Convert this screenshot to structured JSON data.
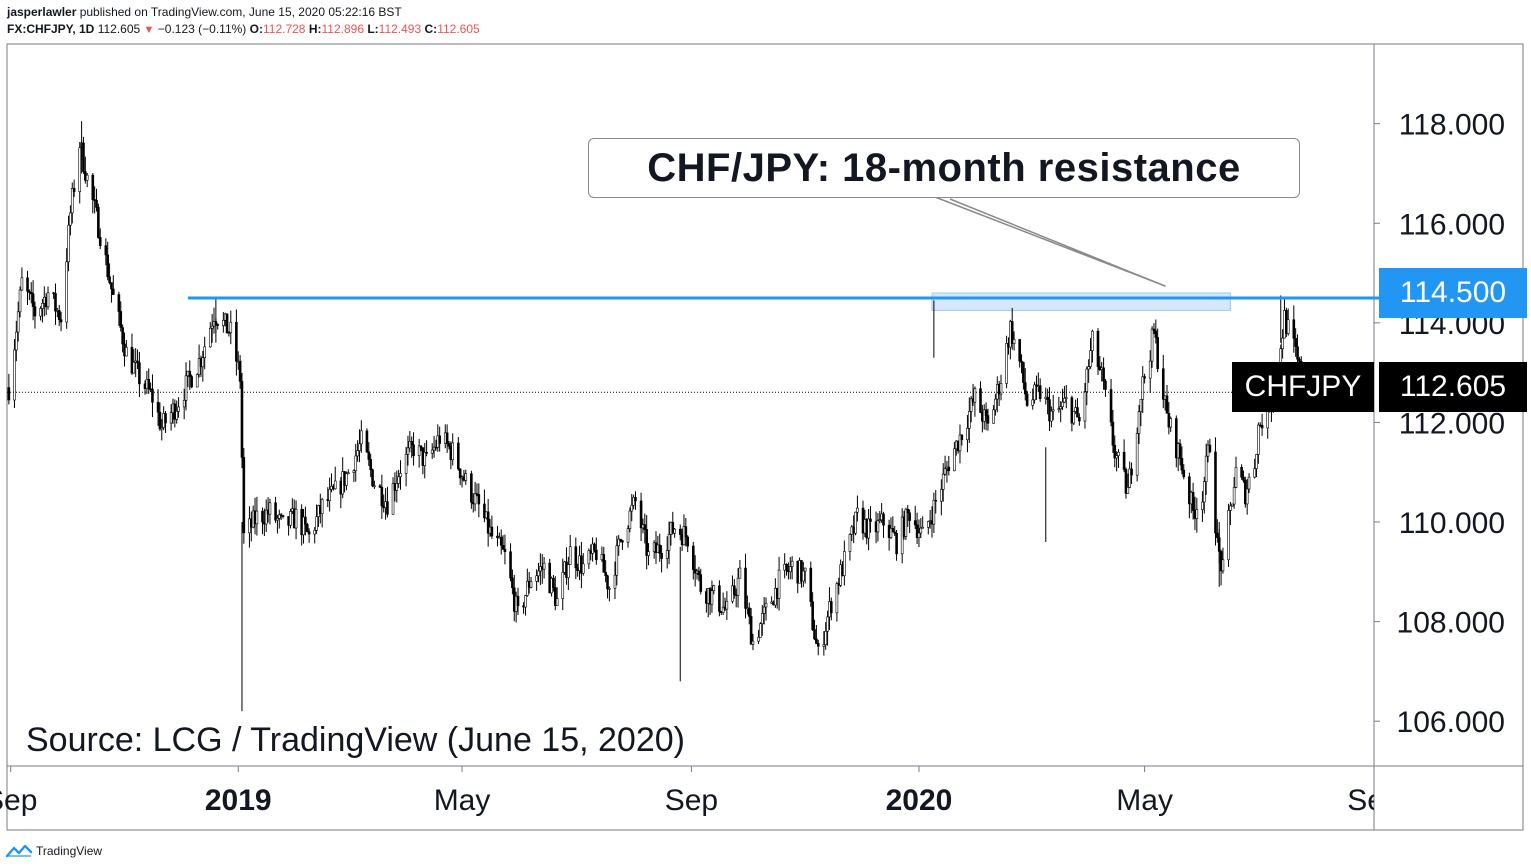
{
  "header": {
    "author": "jasperlawler",
    "published_text": " published on TradingView.com, June 15, 2020 05:22:16 BST"
  },
  "ohlc": {
    "symbol": "FX:CHFJPY, 1D",
    "last": "112.605",
    "change": "−0.123 (−0.11%)",
    "open_label": "O:",
    "open": "112.728",
    "high_label": "H:",
    "high": "112.896",
    "low_label": "L:",
    "low": "112.493",
    "close_label": "C:",
    "close": "112.605"
  },
  "annotation": {
    "callout": "CHF/JPY: 18-month resistance",
    "source": "Source: LCG / TradingView (June 15, 2020)"
  },
  "price_tags": {
    "resistance": "114.500",
    "symbol": "CHFJPY",
    "current": "112.605"
  },
  "footer": {
    "brand": "TradingView"
  },
  "colors": {
    "resistance_line": "#2196f3",
    "zone_fill": "#cfe3f8",
    "candle": "#000000",
    "down_text": "#ef5350"
  },
  "chart_data": {
    "type": "candlestick",
    "title": "",
    "xlabel": "",
    "ylabel": "",
    "x_ticks": [
      {
        "label": "Sep",
        "date": "2018-09-01",
        "bold": false
      },
      {
        "label": "2019",
        "date": "2019-01-01",
        "bold": true
      },
      {
        "label": "May",
        "date": "2019-05-01",
        "bold": false
      },
      {
        "label": "Sep",
        "date": "2019-09-01",
        "bold": false
      },
      {
        "label": "2020",
        "date": "2020-01-01",
        "bold": true
      },
      {
        "label": "May",
        "date": "2020-05-01",
        "bold": false
      },
      {
        "label": "Sep",
        "date": "2020-09-01",
        "bold": false
      }
    ],
    "y_ticks": [
      "106.000",
      "108.000",
      "110.000",
      "112.000",
      "114.000",
      "116.000",
      "118.000"
    ],
    "ylim": [
      105.1,
      119.6
    ],
    "xlim": [
      "2018-08-30",
      "2020-09-01"
    ],
    "resistance_level": 114.5,
    "resistance_zone": {
      "from": "2020-01-08",
      "to": "2020-06-16",
      "low": 114.25,
      "high": 114.6
    },
    "current_price": 112.605,
    "series": [
      {
        "points": [
          {
            "date": "2018-08-31",
            "value": 112.7
          },
          {
            "date": "2018-09-07",
            "value": 114.8
          },
          {
            "date": "2018-09-14",
            "value": 114.2
          },
          {
            "date": "2018-09-21",
            "value": 114.6
          },
          {
            "date": "2018-09-28",
            "value": 114.1
          },
          {
            "date": "2018-10-03",
            "value": 116.2
          },
          {
            "date": "2018-10-08",
            "value": 117.6
          },
          {
            "date": "2018-10-12",
            "value": 116.9
          },
          {
            "date": "2018-10-19",
            "value": 115.8
          },
          {
            "date": "2018-10-26",
            "value": 114.5
          },
          {
            "date": "2018-11-02",
            "value": 113.4
          },
          {
            "date": "2018-11-09",
            "value": 112.9
          },
          {
            "date": "2018-11-16",
            "value": 112.5
          },
          {
            "date": "2018-11-21",
            "value": 111.9
          },
          {
            "date": "2018-11-28",
            "value": 112.3
          },
          {
            "date": "2018-12-05",
            "value": 112.8
          },
          {
            "date": "2018-12-12",
            "value": 113.3
          },
          {
            "date": "2018-12-19",
            "value": 114.2
          },
          {
            "date": "2018-12-28",
            "value": 113.8
          },
          {
            "date": "2019-01-02",
            "value": 112.9
          },
          {
            "date": "2019-01-04",
            "value": 109.7
          },
          {
            "date": "2019-01-11",
            "value": 110.1
          },
          {
            "date": "2019-01-18",
            "value": 110.2
          },
          {
            "date": "2019-01-25",
            "value": 109.9
          },
          {
            "date": "2019-02-01",
            "value": 110.1
          },
          {
            "date": "2019-02-08",
            "value": 109.7
          },
          {
            "date": "2019-02-15",
            "value": 110.3
          },
          {
            "date": "2019-02-22",
            "value": 110.6
          },
          {
            "date": "2019-03-01",
            "value": 111.0
          },
          {
            "date": "2019-03-08",
            "value": 111.6
          },
          {
            "date": "2019-03-15",
            "value": 110.8
          },
          {
            "date": "2019-03-22",
            "value": 110.4
          },
          {
            "date": "2019-03-29",
            "value": 111.1
          },
          {
            "date": "2019-04-05",
            "value": 111.5
          },
          {
            "date": "2019-04-12",
            "value": 111.2
          },
          {
            "date": "2019-04-19",
            "value": 111.7
          },
          {
            "date": "2019-04-26",
            "value": 111.4
          },
          {
            "date": "2019-05-03",
            "value": 110.8
          },
          {
            "date": "2019-05-10",
            "value": 110.3
          },
          {
            "date": "2019-05-17",
            "value": 109.7
          },
          {
            "date": "2019-05-24",
            "value": 109.3
          },
          {
            "date": "2019-05-31",
            "value": 108.1
          },
          {
            "date": "2019-06-07",
            "value": 108.9
          },
          {
            "date": "2019-06-14",
            "value": 109.1
          },
          {
            "date": "2019-06-21",
            "value": 108.4
          },
          {
            "date": "2019-06-28",
            "value": 109.4
          },
          {
            "date": "2019-07-05",
            "value": 109.1
          },
          {
            "date": "2019-07-12",
            "value": 109.4
          },
          {
            "date": "2019-07-19",
            "value": 108.7
          },
          {
            "date": "2019-07-26",
            "value": 109.8
          },
          {
            "date": "2019-08-02",
            "value": 110.4
          },
          {
            "date": "2019-08-09",
            "value": 109.3
          },
          {
            "date": "2019-08-16",
            "value": 109.5
          },
          {
            "date": "2019-08-23",
            "value": 109.9
          },
          {
            "date": "2019-08-30",
            "value": 109.7
          },
          {
            "date": "2019-09-06",
            "value": 108.7
          },
          {
            "date": "2019-09-13",
            "value": 108.5
          },
          {
            "date": "2019-09-20",
            "value": 108.2
          },
          {
            "date": "2019-09-27",
            "value": 108.9
          },
          {
            "date": "2019-10-04",
            "value": 107.6
          },
          {
            "date": "2019-10-11",
            "value": 108.2
          },
          {
            "date": "2019-10-18",
            "value": 108.8
          },
          {
            "date": "2019-10-25",
            "value": 109.1
          },
          {
            "date": "2019-11-01",
            "value": 108.9
          },
          {
            "date": "2019-11-08",
            "value": 107.3
          },
          {
            "date": "2019-11-15",
            "value": 108.4
          },
          {
            "date": "2019-11-22",
            "value": 109.2
          },
          {
            "date": "2019-11-29",
            "value": 110.1
          },
          {
            "date": "2019-12-06",
            "value": 109.8
          },
          {
            "date": "2019-12-13",
            "value": 110.0
          },
          {
            "date": "2019-12-20",
            "value": 109.6
          },
          {
            "date": "2019-12-27",
            "value": 110.2
          },
          {
            "date": "2020-01-03",
            "value": 109.7
          },
          {
            "date": "2020-01-10",
            "value": 110.4
          },
          {
            "date": "2020-01-17",
            "value": 111.2
          },
          {
            "date": "2020-01-24",
            "value": 111.8
          },
          {
            "date": "2020-01-31",
            "value": 112.5
          },
          {
            "date": "2020-02-07",
            "value": 111.9
          },
          {
            "date": "2020-02-14",
            "value": 112.9
          },
          {
            "date": "2020-02-19",
            "value": 113.9
          },
          {
            "date": "2020-02-24",
            "value": 113.2
          },
          {
            "date": "2020-02-28",
            "value": 112.4
          },
          {
            "date": "2020-03-06",
            "value": 112.6
          },
          {
            "date": "2020-03-13",
            "value": 112.1
          },
          {
            "date": "2020-03-20",
            "value": 112.4
          },
          {
            "date": "2020-03-27",
            "value": 112.0
          },
          {
            "date": "2020-04-03",
            "value": 113.6
          },
          {
            "date": "2020-04-08",
            "value": 112.9
          },
          {
            "date": "2020-04-15",
            "value": 111.4
          },
          {
            "date": "2020-04-22",
            "value": 110.6
          },
          {
            "date": "2020-04-29",
            "value": 112.6
          },
          {
            "date": "2020-05-06",
            "value": 113.8
          },
          {
            "date": "2020-05-13",
            "value": 112.1
          },
          {
            "date": "2020-05-20",
            "value": 111.3
          },
          {
            "date": "2020-05-27",
            "value": 110.2
          },
          {
            "date": "2020-06-01",
            "value": 110.6
          },
          {
            "date": "2020-06-05",
            "value": 111.6
          },
          {
            "date": "2020-06-09",
            "value": 109.5
          },
          {
            "date": "2020-06-12",
            "value": 109.0
          },
          {
            "date": "2020-06-15",
            "value": 110.0
          },
          {
            "date": "2020-06-19",
            "value": 111.0
          },
          {
            "date": "2020-06-24",
            "value": 110.6
          },
          {
            "date": "2020-06-29",
            "value": 111.2
          },
          {
            "date": "2020-07-01",
            "value": 111.9
          },
          {
            "date": "2020-07-06",
            "value": 112.3
          },
          {
            "date": "2020-07-10",
            "value": 112.8
          },
          {
            "date": "2020-07-15",
            "value": 114.1
          },
          {
            "date": "2020-07-20",
            "value": 113.5
          },
          {
            "date": "2020-07-24",
            "value": 112.9
          },
          {
            "date": "2020-07-29",
            "value": 112.6
          }
        ]
      }
    ]
  }
}
